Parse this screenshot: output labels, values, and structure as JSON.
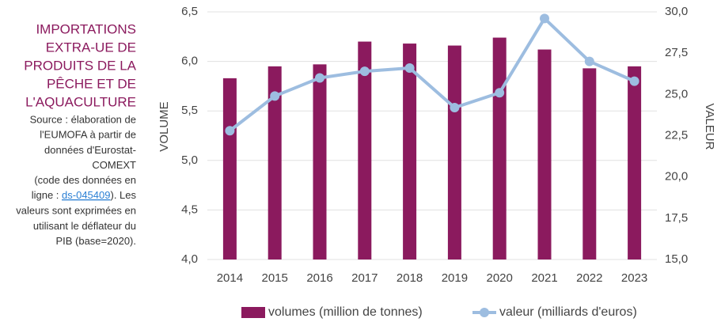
{
  "chart_data": {
    "type": "bar_line",
    "title_lines": [
      "IMPORTATIONS",
      "EXTRA-UE DE",
      "PRODUITS DE LA",
      "PÊCHE ET DE",
      "L'AQUACULTURE"
    ],
    "source_lines": [
      "Source : élaboration de",
      "l'EUMOFA à partir de",
      "données d'Eurostat-",
      "COMEXT",
      "(code des données en",
      {
        "before": "ligne : ",
        "link": "ds-045409",
        "after": "). Les"
      },
      "valeurs sont exprimées en",
      "utilisant le déflateur du",
      "PIB (base=2020)."
    ],
    "ylabel": "VOLUME",
    "y2label": "VALEUR",
    "categories": [
      "2014",
      "2015",
      "2016",
      "2017",
      "2018",
      "2019",
      "2020",
      "2021",
      "2022",
      "2023"
    ],
    "series": [
      {
        "name": "volumes (million de tonnes)",
        "color": "#8b1a5e",
        "kind": "bar",
        "values": [
          5.83,
          5.95,
          5.97,
          6.2,
          6.18,
          6.16,
          6.24,
          6.12,
          5.93,
          5.95
        ]
      },
      {
        "name": "valeur (milliards d'euros)",
        "color": "#9dbde0",
        "kind": "line",
        "axis": "y2",
        "values": [
          22.8,
          24.9,
          26.0,
          26.4,
          26.6,
          24.2,
          25.1,
          29.6,
          27.0,
          25.8
        ]
      }
    ],
    "ylim": [
      4,
      6.5
    ],
    "yticks": [
      {
        "value": 4,
        "label": "4,0"
      },
      {
        "value": 4.5,
        "label": "4,5"
      },
      {
        "value": 5,
        "label": "5,0"
      },
      {
        "value": 5.5,
        "label": "5,5"
      },
      {
        "value": 6,
        "label": "6,0"
      },
      {
        "value": 6.5,
        "label": "6,5"
      }
    ],
    "y2lim": [
      15,
      30
    ],
    "y2ticks": [
      {
        "value": 15,
        "label": "15,0"
      },
      {
        "value": 17.5,
        "label": "17,5"
      },
      {
        "value": 20,
        "label": "20,0"
      },
      {
        "value": 22.5,
        "label": "22,5"
      },
      {
        "value": 25,
        "label": "25,0"
      },
      {
        "value": 27.5,
        "label": "27,5"
      },
      {
        "value": 30,
        "label": "30,0"
      }
    ],
    "grid": true,
    "legend": "bottom"
  }
}
